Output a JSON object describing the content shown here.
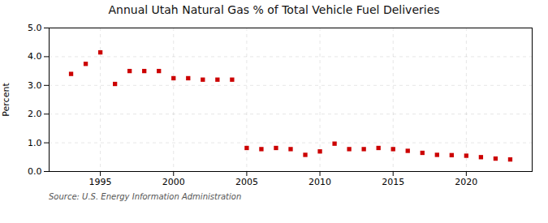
{
  "chart_data": {
    "type": "scatter",
    "title": "Annual Utah Natural Gas % of Total Vehicle Fuel Deliveries",
    "ylabel": "Percent",
    "source": "Source: U.S. Energy Information Administration",
    "x": [
      1993,
      1994,
      1995,
      1996,
      1997,
      1998,
      1999,
      2000,
      2001,
      2002,
      2003,
      2004,
      2005,
      2006,
      2007,
      2008,
      2009,
      2010,
      2011,
      2012,
      2013,
      2014,
      2015,
      2016,
      2017,
      2018,
      2019,
      2020,
      2021,
      2022,
      2023
    ],
    "values": [
      3.4,
      3.75,
      4.15,
      3.05,
      3.5,
      3.5,
      3.5,
      3.25,
      3.25,
      3.2,
      3.2,
      3.2,
      0.82,
      0.78,
      0.82,
      0.78,
      0.58,
      0.7,
      0.97,
      0.78,
      0.78,
      0.82,
      0.78,
      0.72,
      0.65,
      0.58,
      0.57,
      0.55,
      0.5,
      0.45,
      0.42
    ],
    "color": "#cc0000",
    "marker": "square",
    "xlim": [
      1991.5,
      2024.5
    ],
    "xticks": [
      1995,
      2000,
      2005,
      2010,
      2015,
      2020
    ],
    "ylim": [
      0.0,
      5.0
    ],
    "yticks": [
      {
        "value": 0,
        "label": "0.0"
      },
      {
        "value": 1,
        "label": "1.0"
      },
      {
        "value": 2,
        "label": "2.0"
      },
      {
        "value": 3,
        "label": "3.0"
      },
      {
        "value": 4,
        "label": "4.0"
      },
      {
        "value": 5,
        "label": "5.0"
      }
    ],
    "grid": true
  }
}
